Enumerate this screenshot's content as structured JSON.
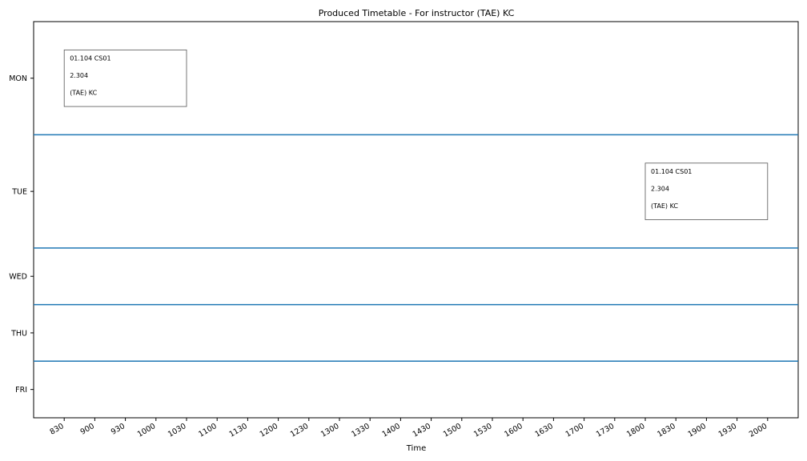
{
  "chart_data": {
    "type": "timeline",
    "title": "Produced Timetable - For instructor (TAE) KC",
    "xlabel": "Time",
    "ylabel": "",
    "days": [
      "MON",
      "TUE",
      "WED",
      "THU",
      "FRI"
    ],
    "x_ticks": [
      "830",
      "900",
      "930",
      "1000",
      "1030",
      "1100",
      "1130",
      "1200",
      "1230",
      "1300",
      "1330",
      "1400",
      "1430",
      "1500",
      "1530",
      "1600",
      "1630",
      "1700",
      "1730",
      "1800",
      "1830",
      "1900",
      "1930",
      "2000"
    ],
    "xlim": [
      "800",
      "2030"
    ],
    "separator_color": "#1f77b4",
    "sessions": [
      {
        "day": "MON",
        "start": "830",
        "end": "1030",
        "lines": [
          "01.104 CS01",
          "2.304",
          "(TAE) KC"
        ]
      },
      {
        "day": "TUE",
        "start": "1800",
        "end": "2000",
        "lines": [
          "01.104 CS01",
          "2.304",
          "(TAE) KC"
        ]
      }
    ]
  }
}
